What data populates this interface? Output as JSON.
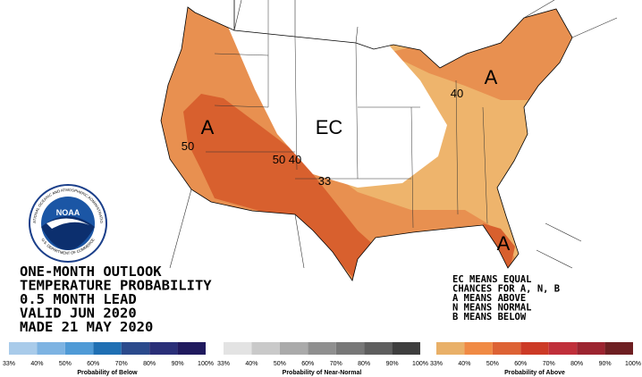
{
  "map": {
    "region_labels": [
      "A",
      "A",
      "A",
      "EC"
    ],
    "contour_labels": [
      "50",
      "50",
      "40",
      "40",
      "33"
    ]
  },
  "logo": {
    "name": "NOAA",
    "ring_top": "NATIONAL OCEANIC AND ATMOSPHERIC ADMINISTRATION",
    "ring_bottom": "U.S. DEPARTMENT OF COMMERCE"
  },
  "title_block": [
    "ONE-MONTH OUTLOOK",
    "TEMPERATURE PROBABILITY",
    "0.5 MONTH LEAD",
    "VALID JUN 2020",
    "MADE 21 MAY 2020"
  ],
  "notes": [
    "EC MEANS EQUAL",
    "CHANCES FOR A, N, B",
    "A MEANS ABOVE",
    "N MEANS NORMAL",
    "B MEANS BELOW"
  ],
  "legend": [
    {
      "title": "Probability of Below",
      "ticks": [
        "33%",
        "40%",
        "50%",
        "60%",
        "70%",
        "80%",
        "90%",
        "100%"
      ],
      "colors": [
        "#a9cbea",
        "#7db3e2",
        "#4f9ad6",
        "#1f6fb3",
        "#2b4a8c",
        "#2a2f78",
        "#201a5e"
      ]
    },
    {
      "title": "Probability of Near-Normal",
      "ticks": [
        "33%",
        "40%",
        "50%",
        "60%",
        "70%",
        "80%",
        "90%",
        "100%"
      ],
      "colors": [
        "#e3e3e3",
        "#c9c9c9",
        "#aaaaaa",
        "#8f8f8f",
        "#777777",
        "#5e5e5e",
        "#3e3e3e"
      ]
    },
    {
      "title": "Probability of Above",
      "ticks": [
        "33%",
        "40%",
        "50%",
        "60%",
        "70%",
        "80%",
        "90%",
        "100%"
      ],
      "colors": [
        "#e9b068",
        "#f08a44",
        "#dd6234",
        "#cc3a26",
        "#c02f3a",
        "#9c2430",
        "#6e1f22"
      ]
    }
  ]
}
